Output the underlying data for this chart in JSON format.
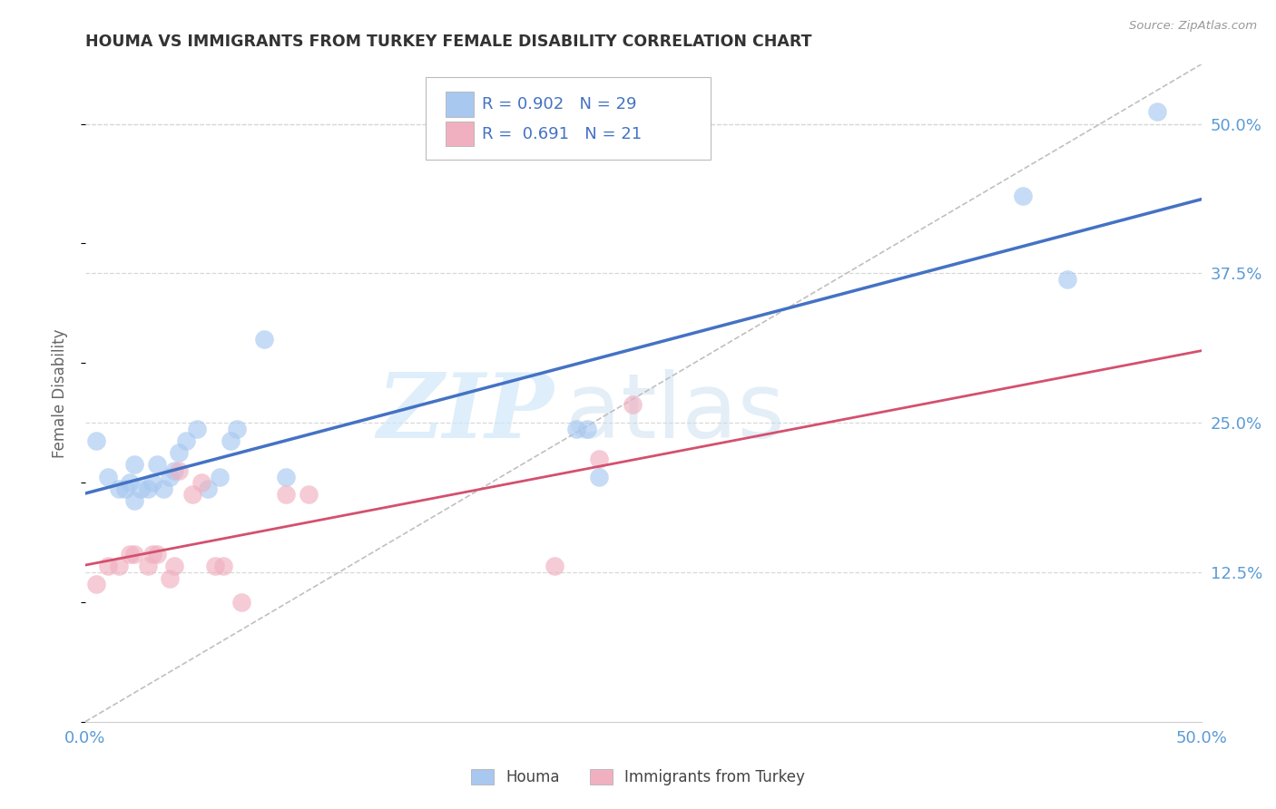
{
  "title": "HOUMA VS IMMIGRANTS FROM TURKEY FEMALE DISABILITY CORRELATION CHART",
  "source": "Source: ZipAtlas.com",
  "tick_color": "#5b9bd5",
  "ylabel": "Female Disability",
  "xlim": [
    0.0,
    0.5
  ],
  "ylim": [
    0.0,
    0.55
  ],
  "xticks": [
    0.0,
    0.0833,
    0.1667,
    0.25,
    0.3333,
    0.4167,
    0.5
  ],
  "xticklabels": [
    "0.0%",
    "",
    "",
    "",
    "",
    "",
    "50.0%"
  ],
  "ytick_labels_right": [
    "12.5%",
    "25.0%",
    "37.5%",
    "50.0%"
  ],
  "ytick_vals_right": [
    0.125,
    0.25,
    0.375,
    0.5
  ],
  "grid_color": "#d8d8d8",
  "background_color": "#ffffff",
  "houma_color": "#a8c8f0",
  "turkey_color": "#f0b0c0",
  "houma_line_color": "#4472c4",
  "turkey_line_color": "#d4506e",
  "legend_text_color": "#4472c4",
  "watermark_zip": "ZIP",
  "watermark_atlas": "atlas",
  "houma_x": [
    0.005,
    0.01,
    0.015,
    0.018,
    0.02,
    0.022,
    0.022,
    0.025,
    0.028,
    0.03,
    0.032,
    0.035,
    0.038,
    0.04,
    0.042,
    0.045,
    0.05,
    0.055,
    0.06,
    0.065,
    0.068,
    0.08,
    0.09,
    0.22,
    0.225,
    0.23,
    0.42,
    0.44,
    0.48
  ],
  "houma_y": [
    0.235,
    0.205,
    0.195,
    0.195,
    0.2,
    0.215,
    0.185,
    0.195,
    0.195,
    0.2,
    0.215,
    0.195,
    0.205,
    0.21,
    0.225,
    0.235,
    0.245,
    0.195,
    0.205,
    0.235,
    0.245,
    0.32,
    0.205,
    0.245,
    0.245,
    0.205,
    0.44,
    0.37,
    0.51
  ],
  "turkey_x": [
    0.005,
    0.01,
    0.015,
    0.02,
    0.022,
    0.028,
    0.03,
    0.032,
    0.038,
    0.04,
    0.042,
    0.048,
    0.052,
    0.058,
    0.062,
    0.07,
    0.09,
    0.1,
    0.21,
    0.23,
    0.245
  ],
  "turkey_y": [
    0.115,
    0.13,
    0.13,
    0.14,
    0.14,
    0.13,
    0.14,
    0.14,
    0.12,
    0.13,
    0.21,
    0.19,
    0.2,
    0.13,
    0.13,
    0.1,
    0.19,
    0.19,
    0.13,
    0.22,
    0.265
  ]
}
